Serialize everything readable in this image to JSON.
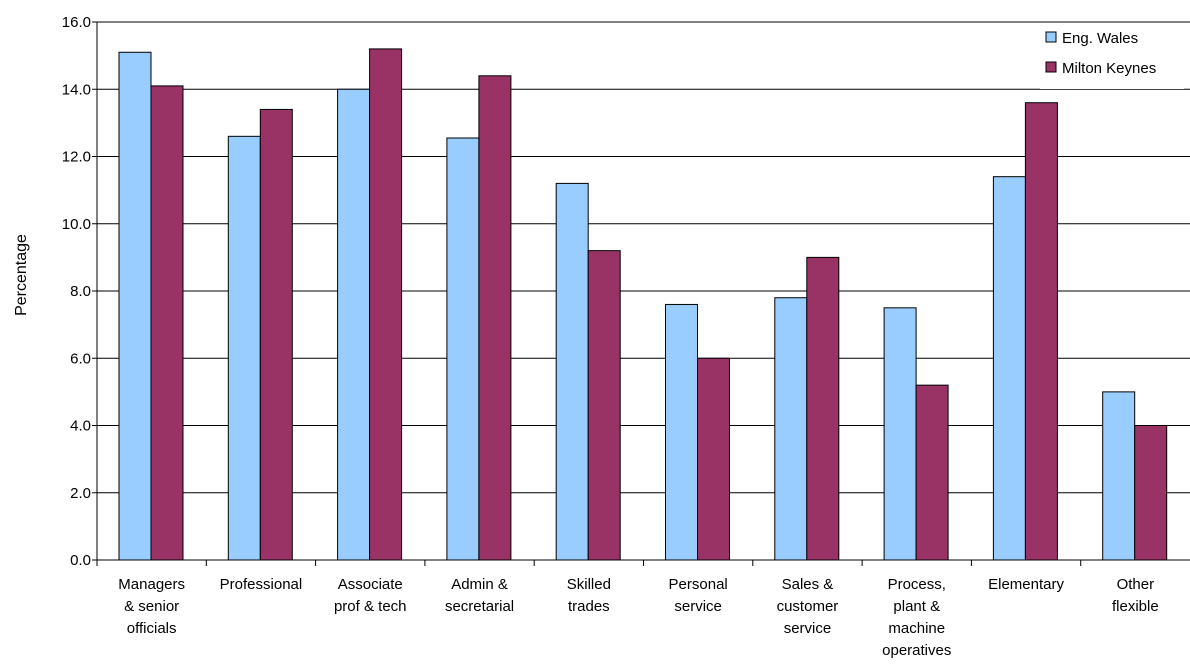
{
  "chart_data": {
    "type": "bar",
    "title": "",
    "xlabel": "",
    "ylabel": "Percentage",
    "ylim": [
      0,
      16
    ],
    "yticks": [
      "0.0",
      "2.0",
      "4.0",
      "6.0",
      "8.0",
      "10.0",
      "12.0",
      "14.0",
      "16.0"
    ],
    "grid": "horizontal",
    "legend_position": "top-right",
    "categories": [
      [
        "Managers",
        "& senior",
        "officials"
      ],
      [
        "Professional"
      ],
      [
        "Associate",
        "prof & tech"
      ],
      [
        "Admin &",
        "secretarial"
      ],
      [
        "Skilled",
        "trades"
      ],
      [
        "Personal",
        "service"
      ],
      [
        "Sales &",
        "customer",
        "service"
      ],
      [
        "Process,",
        "plant &",
        "machine",
        "operatives"
      ],
      [
        "Elementary"
      ],
      [
        "Other",
        "flexible"
      ]
    ],
    "series": [
      {
        "name": "Eng. Wales",
        "color": "#99ccff",
        "values": [
          15.1,
          12.6,
          14.0,
          12.55,
          11.2,
          7.6,
          7.8,
          7.5,
          11.4,
          5.0
        ]
      },
      {
        "name": "Milton Keynes",
        "color": "#993366",
        "values": [
          14.1,
          13.4,
          15.2,
          14.4,
          9.2,
          6.0,
          9.0,
          5.2,
          13.6,
          4.0
        ]
      }
    ]
  }
}
